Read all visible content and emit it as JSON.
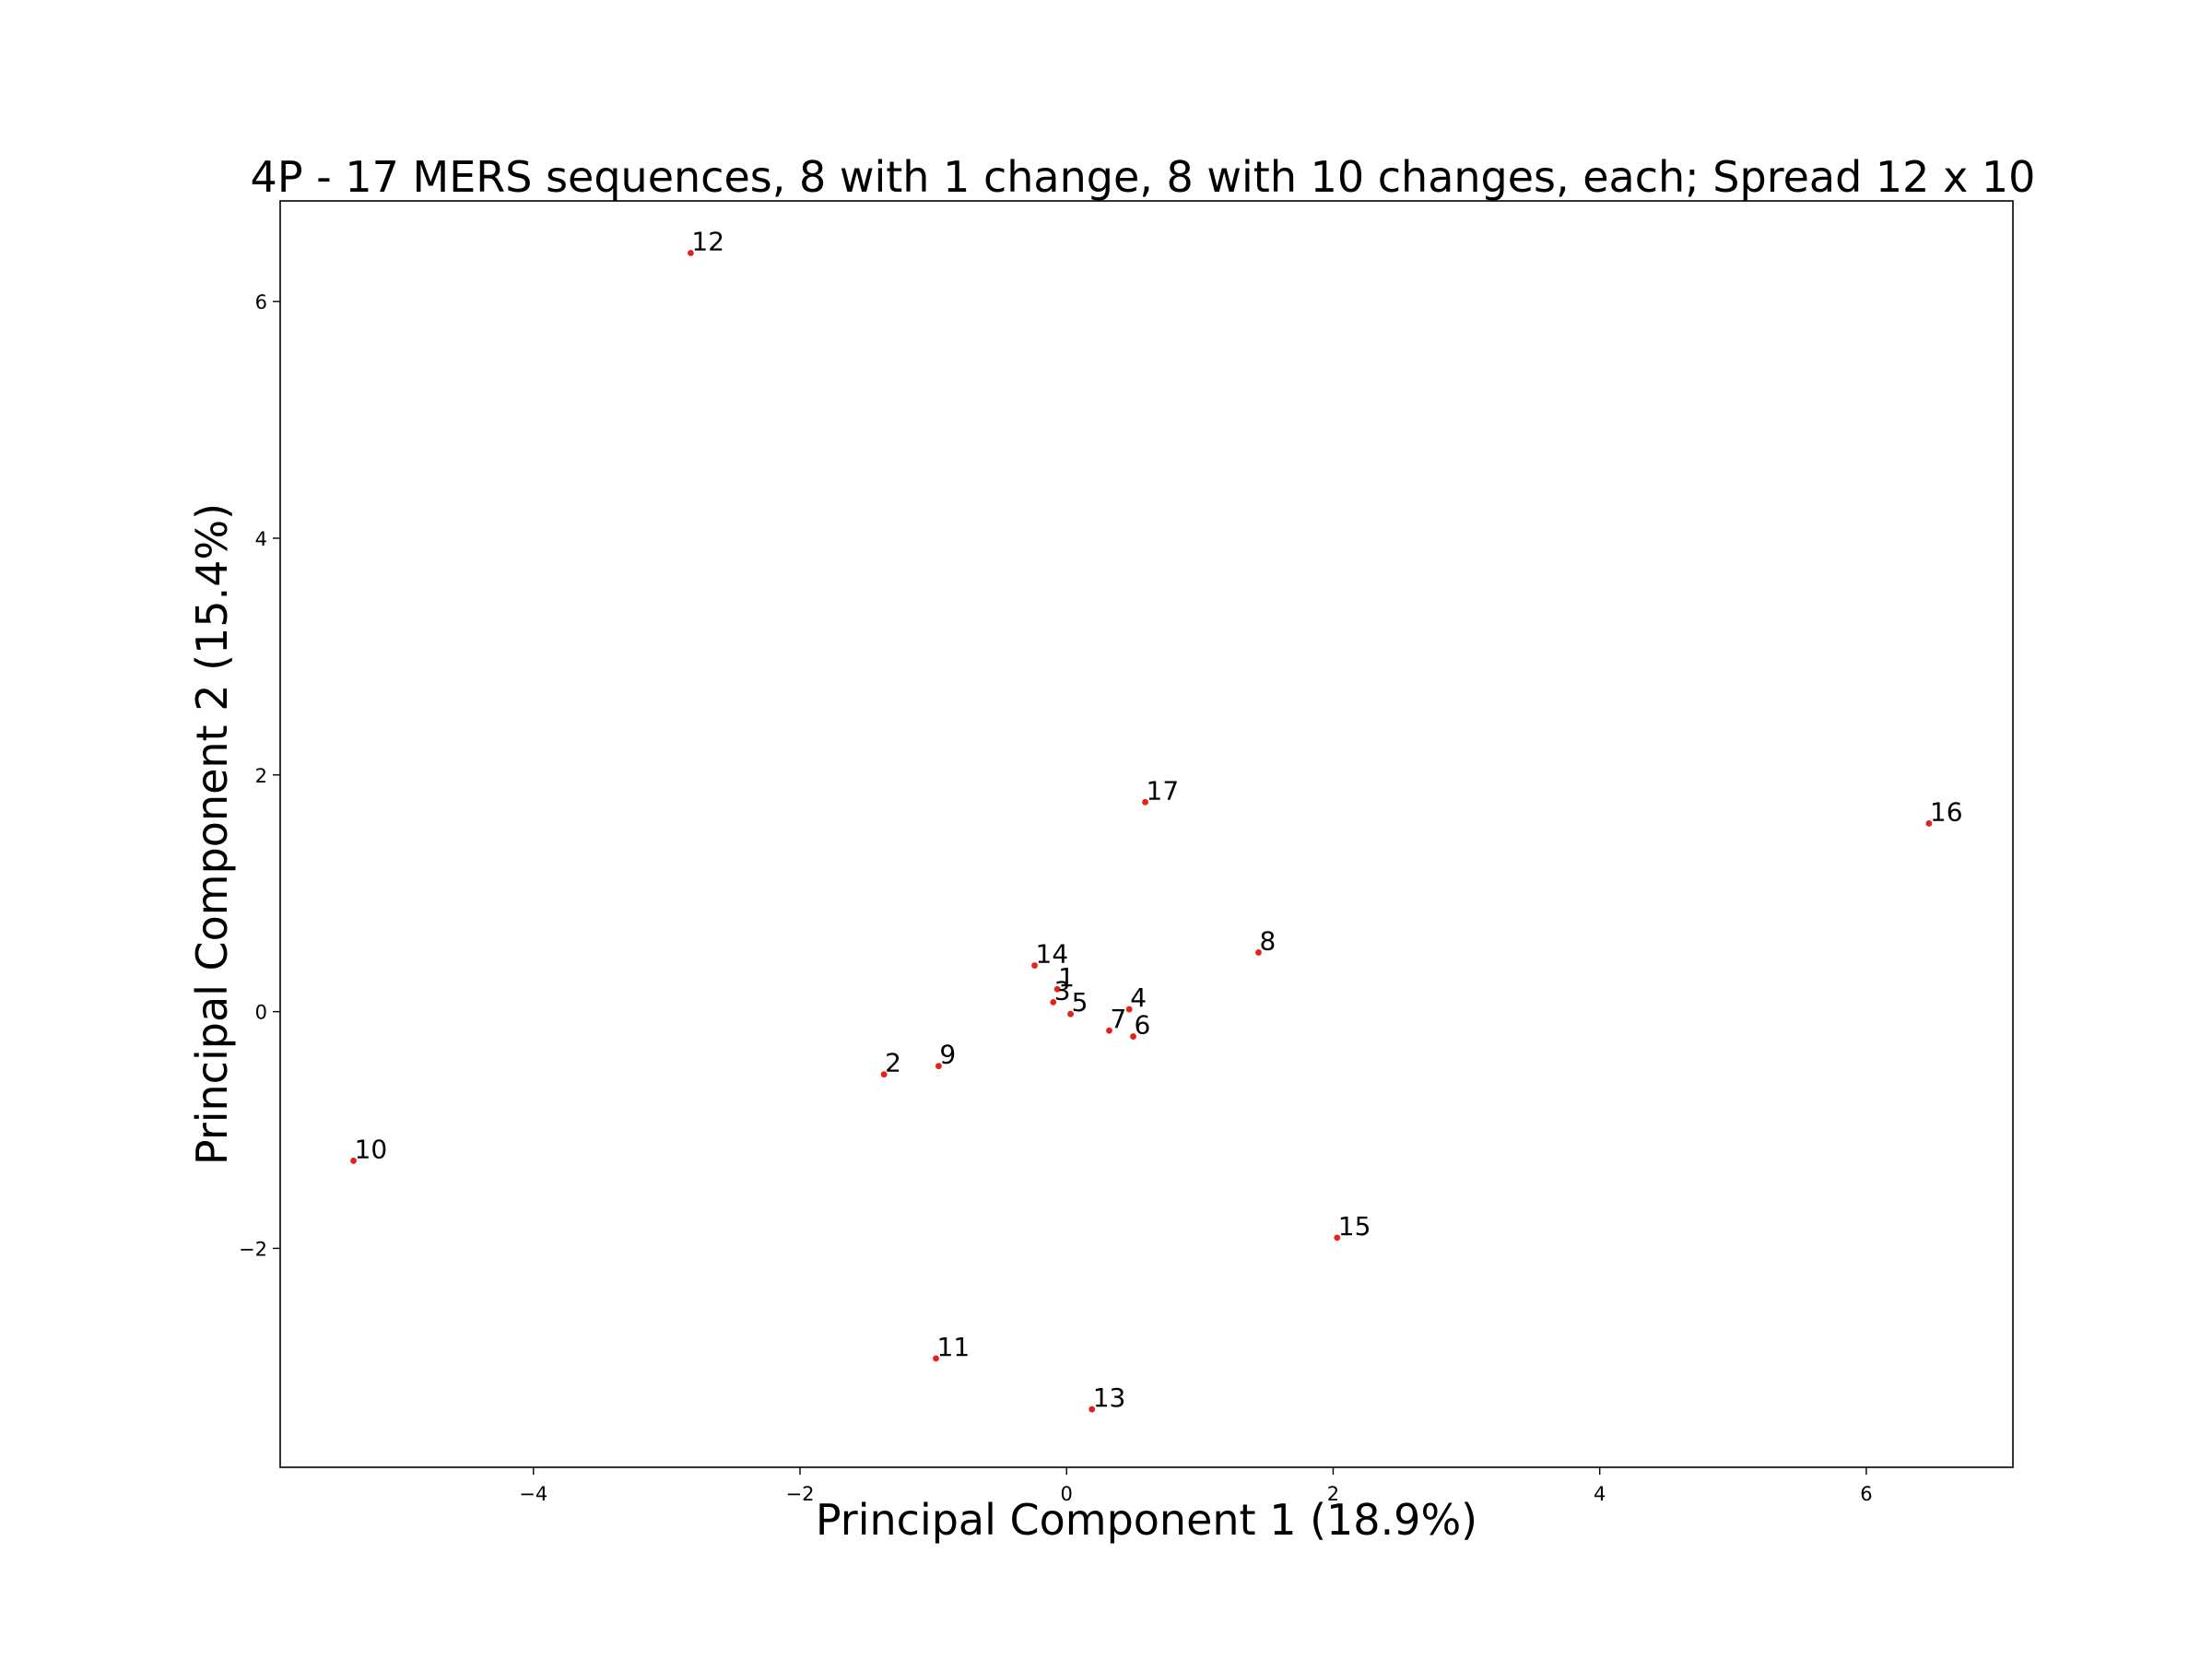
{
  "chart_data": {
    "type": "scatter",
    "title": "4P - 17 MERS sequences, 8 with 1 change, 8 with 10 changes, each; Spread 12 x 10",
    "xlabel": "Principal Component 1 (18.9%)",
    "ylabel": "Principal Component 2 (15.4%)",
    "xlim": [
      -5.9,
      7.1
    ],
    "ylim": [
      -3.85,
      6.85
    ],
    "xticks": [
      -4,
      -2,
      0,
      2,
      4,
      6
    ],
    "yticks": [
      -2,
      0,
      2,
      4,
      6
    ],
    "grid": false,
    "legend": "none",
    "point_color": "#e8201a",
    "points": [
      {
        "label": "1",
        "x": -0.07,
        "y": 0.19
      },
      {
        "label": "2",
        "x": -1.37,
        "y": -0.53
      },
      {
        "label": "3",
        "x": -0.1,
        "y": 0.08
      },
      {
        "label": "4",
        "x": 0.47,
        "y": 0.02
      },
      {
        "label": "5",
        "x": 0.03,
        "y": -0.02
      },
      {
        "label": "6",
        "x": 0.5,
        "y": -0.21
      },
      {
        "label": "7",
        "x": 0.32,
        "y": -0.16
      },
      {
        "label": "8",
        "x": 1.44,
        "y": 0.5
      },
      {
        "label": "9",
        "x": -0.96,
        "y": -0.46
      },
      {
        "label": "10",
        "x": -5.35,
        "y": -1.26
      },
      {
        "label": "11",
        "x": -0.98,
        "y": -2.93
      },
      {
        "label": "12",
        "x": -2.82,
        "y": 6.41
      },
      {
        "label": "13",
        "x": 0.19,
        "y": -3.36
      },
      {
        "label": "14",
        "x": -0.24,
        "y": 0.39
      },
      {
        "label": "15",
        "x": 2.03,
        "y": -1.91
      },
      {
        "label": "16",
        "x": 6.47,
        "y": 1.59
      },
      {
        "label": "17",
        "x": 0.59,
        "y": 1.77
      }
    ]
  }
}
